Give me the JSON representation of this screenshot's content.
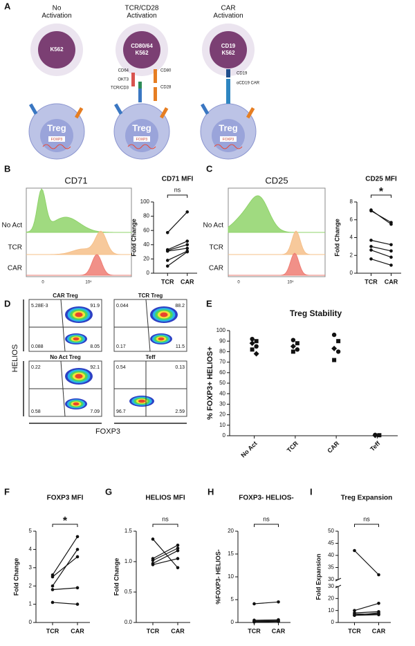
{
  "panel_letters": [
    "A",
    "B",
    "C",
    "D",
    "E",
    "F",
    "G",
    "H",
    "I"
  ],
  "schematic": {
    "columns": [
      {
        "title": [
          "No",
          "Activation"
        ],
        "target": [
          "K562"
        ],
        "cell": "Treg",
        "gene": "FOXP3",
        "labels": []
      },
      {
        "title": [
          "TCR/CD28",
          "Activation"
        ],
        "target": [
          "CD80/64",
          "K562"
        ],
        "cell": "Treg",
        "gene": "FOXP3",
        "labels": [
          "CD64",
          "OKT3",
          "TCR/CD3",
          "CD80",
          "CD28"
        ]
      },
      {
        "title": [
          "CAR",
          "Activation"
        ],
        "target": [
          "CD19",
          "K562"
        ],
        "cell": "Treg",
        "gene": "FOXP3",
        "labels": [
          "CD19",
          "αCD19 CAR"
        ]
      }
    ]
  },
  "histograms": [
    {
      "title": "CD71",
      "rows": [
        "No Act",
        "TCR",
        "CAR"
      ],
      "xtick_labels": [
        "0",
        "10⁴"
      ]
    },
    {
      "title": "CD25",
      "rows": [
        "No Act",
        "TCR",
        "CAR"
      ],
      "xtick_labels": [
        "0",
        "10⁴"
      ]
    }
  ],
  "flow": {
    "y_label": "HELIOS",
    "x_label": "FOXP3",
    "plots": [
      {
        "title": "CAR Treg",
        "quadrants": [
          "5.28E-3",
          "91.9",
          "0.088",
          "8.05"
        ]
      },
      {
        "title": "TCR Treg",
        "quadrants": [
          "0.044",
          "88.2",
          "0.17",
          "11.5"
        ]
      },
      {
        "title": "No Act Treg",
        "quadrants": [
          "0.22",
          "92.1",
          "0.58",
          "7.09"
        ]
      },
      {
        "title": "Teff",
        "quadrants": [
          "0.54",
          "0.13",
          "96.7",
          "2.59"
        ]
      }
    ]
  },
  "chart_data": [
    {
      "type": "paired",
      "title": "CD71 MFI",
      "y_label": "Fold Change",
      "annotation": "ns",
      "color": "#111111",
      "categories": [
        "TCR",
        "CAR"
      ],
      "ylim": [
        0,
        100
      ],
      "yticks": [
        0,
        20,
        40,
        60,
        80,
        100
      ],
      "series": [
        {
          "values": [
            57,
            86
          ]
        },
        {
          "values": [
            33,
            45
          ]
        },
        {
          "values": [
            32,
            40
          ]
        },
        {
          "values": [
            31,
            35
          ]
        },
        {
          "values": [
            18,
            31
          ]
        },
        {
          "values": [
            10,
            30
          ]
        }
      ]
    },
    {
      "type": "paired",
      "title": "CD25 MFI",
      "y_label": "Fold Change",
      "annotation": "*",
      "color": "#111111",
      "categories": [
        "TCR",
        "CAR"
      ],
      "ylim": [
        0,
        8
      ],
      "yticks": [
        0,
        2,
        4,
        6,
        8
      ],
      "series": [
        {
          "values": [
            7.1,
            5.5
          ]
        },
        {
          "values": [
            7.0,
            5.7
          ]
        },
        {
          "values": [
            3.7,
            3.2
          ]
        },
        {
          "values": [
            3.0,
            2.5
          ]
        },
        {
          "values": [
            2.6,
            1.8
          ]
        },
        {
          "values": [
            1.6,
            0.9
          ]
        }
      ]
    },
    {
      "type": "dots",
      "title": "Treg Stability",
      "y_label": "% FOXP3+ HELIOS+",
      "color": "#111111",
      "categories": [
        "No Act",
        "TCR",
        "CAR",
        "Teff"
      ],
      "ylim": [
        0,
        100
      ],
      "yticks": [
        0,
        10,
        20,
        30,
        40,
        50,
        60,
        70,
        80,
        90,
        100
      ],
      "values": [
        [
          92,
          90,
          88,
          85,
          82,
          78
        ],
        [
          91,
          88,
          85,
          82,
          80
        ],
        [
          96,
          90,
          83,
          80,
          72
        ],
        [
          0.8,
          0.5,
          0.3
        ]
      ]
    },
    {
      "type": "paired",
      "title": "FOXP3 MFI",
      "y_label": "Fold Change",
      "annotation": "*",
      "color": "#111111",
      "categories": [
        "TCR",
        "CAR"
      ],
      "ylim": [
        0,
        5
      ],
      "yticks": [
        0,
        1,
        2,
        3,
        4,
        5
      ],
      "series": [
        {
          "values": [
            2.6,
            4.7
          ]
        },
        {
          "values": [
            2.5,
            3.6
          ]
        },
        {
          "values": [
            2.0,
            4.0
          ]
        },
        {
          "values": [
            1.8,
            1.9
          ]
        },
        {
          "values": [
            1.1,
            1.0
          ]
        }
      ]
    },
    {
      "type": "paired",
      "title": "HELIOS MFI",
      "y_label": "Fold Change",
      "annotation": "ns",
      "color": "#111111",
      "categories": [
        "TCR",
        "CAR"
      ],
      "ylim": [
        0,
        1.5
      ],
      "yticks": [
        {
          "value": 0,
          "label": "0.0"
        },
        0.5,
        {
          "value": 1,
          "label": "1.0"
        },
        1.5
      ],
      "series": [
        {
          "values": [
            1.37,
            0.9
          ]
        },
        {
          "values": [
            1.05,
            1.27
          ]
        },
        {
          "values": [
            1.02,
            1.22
          ]
        },
        {
          "values": [
            0.97,
            1.18
          ]
        },
        {
          "values": [
            0.95,
            1.05
          ]
        }
      ]
    },
    {
      "type": "paired",
      "title": "FOXP3- HELIOS-",
      "y_label": "%FOXP3- HELIOS-",
      "annotation": "ns",
      "color": "#111111",
      "categories": [
        "TCR",
        "CAR"
      ],
      "ylim": [
        0,
        20
      ],
      "yticks": [
        0,
        5,
        10,
        15,
        20
      ],
      "series": [
        {
          "values": [
            4.1,
            4.5
          ]
        },
        {
          "values": [
            0.5,
            0.6
          ]
        },
        {
          "values": [
            0.3,
            0.4
          ]
        },
        {
          "values": [
            0.2,
            0.3
          ]
        },
        {
          "values": [
            0.1,
            0.2
          ]
        }
      ]
    },
    {
      "type": "paired",
      "title": "Treg Expansion",
      "y_label": "Fold Expansion",
      "annotation": "ns",
      "color": "#111111",
      "categories": [
        "TCR",
        "CAR"
      ],
      "segments": [
        {
          "ylim": [
            0,
            30
          ],
          "yticks": [
            0,
            10,
            20,
            30
          ]
        },
        {
          "ylim": [
            30,
            50
          ],
          "yticks": [
            30,
            35,
            40,
            45,
            50
          ]
        }
      ],
      "series": [
        {
          "values": [
            42,
            32
          ]
        },
        {
          "values": [
            10,
            16
          ]
        },
        {
          "values": [
            8,
            9
          ]
        },
        {
          "values": [
            7,
            7
          ]
        },
        {
          "values": [
            6,
            8
          ]
        },
        {
          "values": [
            6,
            6.5
          ]
        }
      ]
    }
  ]
}
